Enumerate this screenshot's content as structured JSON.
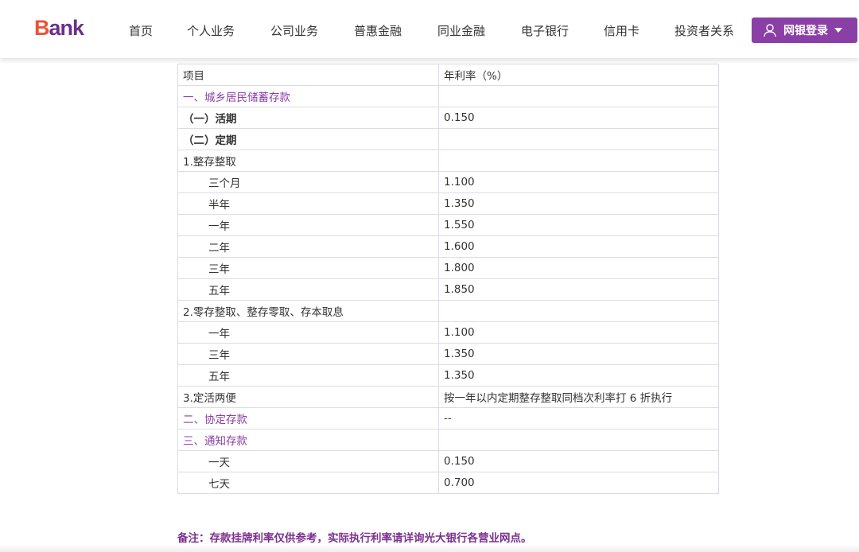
{
  "header": {
    "logo": {
      "first": "B",
      "rest": "ank"
    },
    "nav": [
      "首页",
      "个人业务",
      "公司业务",
      "普惠金融",
      "同业金融",
      "电子银行",
      "信用卡",
      "投资者关系"
    ],
    "login_label": "网银登录",
    "icons": [
      "user-icon",
      "caret-down-icon"
    ],
    "accent": "#8a3fa6"
  },
  "table": {
    "headers": [
      "项目",
      "年利率（%）"
    ],
    "rows": [
      {
        "type": "section",
        "item": "一、城乡居民储蓄存款",
        "rate": ""
      },
      {
        "type": "bold",
        "item": "（一）活期",
        "rate": "0.150"
      },
      {
        "type": "bold",
        "item": "（二）定期",
        "rate": ""
      },
      {
        "type": "normal",
        "item": "1.整存整取",
        "rate": ""
      },
      {
        "type": "indent",
        "item": "三个月",
        "rate": "1.100"
      },
      {
        "type": "indent",
        "item": "半年",
        "rate": "1.350"
      },
      {
        "type": "indent",
        "item": "一年",
        "rate": "1.550"
      },
      {
        "type": "indent",
        "item": "二年",
        "rate": "1.600"
      },
      {
        "type": "indent",
        "item": "三年",
        "rate": "1.800"
      },
      {
        "type": "indent",
        "item": "五年",
        "rate": "1.850"
      },
      {
        "type": "normal",
        "item": "2.零存整取、整存零取、存本取息",
        "rate": ""
      },
      {
        "type": "indent",
        "item": "一年",
        "rate": "1.100"
      },
      {
        "type": "indent",
        "item": "三年",
        "rate": "1.350"
      },
      {
        "type": "indent",
        "item": "五年",
        "rate": "1.350"
      },
      {
        "type": "normal",
        "item": "3.定活两便",
        "rate": "按一年以内定期整存整取同档次利率打 6 折执行"
      },
      {
        "type": "section",
        "item": "二、协定存款",
        "rate": "--"
      },
      {
        "type": "section",
        "item": "三、通知存款",
        "rate": ""
      },
      {
        "type": "indent",
        "item": "一天",
        "rate": "0.150"
      },
      {
        "type": "indent",
        "item": "七天",
        "rate": "0.700"
      }
    ]
  },
  "note": "备注：存款挂牌利率仅供参考，实际执行利率请详询光大银行各营业网点。"
}
